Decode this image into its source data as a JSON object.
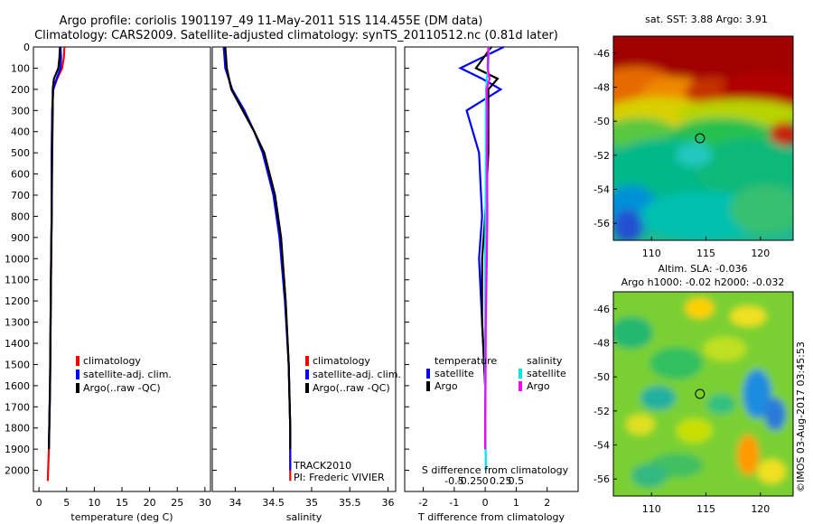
{
  "title": {
    "line1": "Argo profile: coriolis 1901197_49 11-May-2011 51S 114.455E (DM data)",
    "line2": "Climatology: CARS2009. Satellite-adjusted climatology: synTS_20110512.nc (0.81d later)"
  },
  "colors": {
    "climatology": "#ff0000",
    "satellite": "#0000ff",
    "argo": "#000000",
    "sal_satellite": "#00e5ee",
    "sal_argo": "#ff00ff"
  },
  "watermark": "©IMOS 03-Aug-2017 03:45:53",
  "chart_data": [
    {
      "type": "line",
      "name": "temperature-panel",
      "xlabel": "temperature (deg C)",
      "xlim": [
        -1,
        31
      ],
      "ylim": [
        2100,
        0
      ],
      "xticks": [
        0,
        5,
        10,
        15,
        20,
        25,
        30
      ],
      "yticks": [
        0,
        100,
        200,
        300,
        400,
        500,
        600,
        700,
        800,
        900,
        1000,
        1100,
        1200,
        1300,
        1400,
        1500,
        1600,
        1700,
        1800,
        1900,
        2000
      ],
      "legend": [
        "climatology",
        "satellite-adj. clim.",
        "Argo(..raw -QC)"
      ],
      "legend_position": "lower-left",
      "series": [
        {
          "name": "climatology",
          "x": [
            4.6,
            4.5,
            4.2,
            3.3,
            2.6,
            2.4,
            2.3,
            2.3,
            2.2,
            2.1,
            2.0,
            1.8,
            1.6
          ],
          "y": [
            0,
            50,
            100,
            150,
            200,
            300,
            500,
            800,
            1000,
            1300,
            1600,
            1900,
            2050
          ]
        },
        {
          "name": "satellite-adj. clim.",
          "x": [
            3.9,
            4.0,
            3.9,
            3.2,
            2.6,
            2.4,
            2.3,
            2.3,
            2.2,
            2.1,
            2.0,
            1.8
          ],
          "y": [
            0,
            50,
            100,
            150,
            200,
            300,
            500,
            800,
            1000,
            1300,
            1600,
            1900
          ]
        },
        {
          "name": "Argo(..raw -QC)",
          "x": [
            3.8,
            3.7,
            3.5,
            2.7,
            2.5,
            2.5,
            2.4,
            2.3,
            2.2,
            2.1,
            2.0,
            1.8
          ],
          "y": [
            0,
            50,
            100,
            150,
            200,
            300,
            500,
            800,
            1000,
            1300,
            1600,
            1900
          ]
        }
      ]
    },
    {
      "type": "line",
      "name": "salinity-panel",
      "xlabel": "salinity",
      "xlim": [
        33.7,
        36.1
      ],
      "ylim": [
        2100,
        0
      ],
      "xticks": [
        34,
        34.5,
        35,
        35.5,
        36
      ],
      "legend": [
        "climatology",
        "satellite-adj. clim.",
        "Argo(..raw -QC)"
      ],
      "legend_position": "lower-left",
      "annotation": [
        "TRACK2010",
        "PI: Frederic VIVIER"
      ],
      "series": [
        {
          "name": "climatology",
          "x": [
            33.85,
            33.87,
            33.95,
            34.1,
            34.25,
            34.38,
            34.52,
            34.6,
            34.66,
            34.7,
            34.72,
            34.72
          ],
          "y": [
            0,
            80,
            200,
            300,
            400,
            500,
            700,
            900,
            1200,
            1500,
            1800,
            2050
          ]
        },
        {
          "name": "satellite-adj. clim.",
          "x": [
            33.85,
            33.87,
            33.96,
            34.12,
            34.25,
            34.36,
            34.5,
            34.58,
            34.65,
            34.7,
            34.72,
            34.72
          ],
          "y": [
            0,
            100,
            200,
            300,
            400,
            500,
            700,
            900,
            1200,
            1500,
            1800,
            2000
          ]
        },
        {
          "name": "Argo(..raw -QC)",
          "x": [
            33.87,
            33.89,
            33.95,
            34.1,
            34.25,
            34.38,
            34.52,
            34.6,
            34.66,
            34.7,
            34.72,
            34.72
          ],
          "y": [
            0,
            100,
            200,
            300,
            400,
            500,
            700,
            900,
            1200,
            1500,
            1800,
            1900
          ]
        }
      ]
    },
    {
      "type": "line",
      "name": "difference-panel",
      "xlabel": "T difference from climatology",
      "xlabel_top": "S difference from climatology",
      "xlim": [
        -2.6,
        3
      ],
      "ylim": [
        2100,
        0
      ],
      "xticks": [
        -2,
        -1,
        0,
        1,
        2
      ],
      "xticks_top_labels": [
        "-0.5",
        "-0.25",
        "0",
        "0.25",
        "0.5"
      ],
      "legend_headers": [
        "temperature",
        "salinity"
      ],
      "legend": [
        "satellite",
        "Argo",
        "satellite",
        "Argo"
      ],
      "series": [
        {
          "name": "temperature satellite",
          "x": [
            0.6,
            -0.8,
            -0.1,
            0.5,
            -0.6,
            -0.2,
            -0.1,
            -0.2,
            -0.1,
            0.0,
            0.0
          ],
          "y": [
            0,
            100,
            150,
            200,
            300,
            500,
            800,
            1000,
            1300,
            1600,
            1900
          ]
        },
        {
          "name": "temperature Argo",
          "x": [
            0.2,
            -0.3,
            0.4,
            0.1,
            0.1,
            0.1,
            0.0,
            -0.1,
            -0.1,
            0.0,
            0.0
          ],
          "y": [
            0,
            100,
            150,
            200,
            300,
            500,
            800,
            1000,
            1300,
            1600,
            1900
          ]
        },
        {
          "name": "salinity satellite",
          "x": [
            0.12,
            0.1,
            0.05,
            0.03,
            0.02,
            0.02,
            0.01,
            0.0,
            0.0,
            0.0,
            0.02
          ],
          "y": [
            0,
            100,
            150,
            200,
            300,
            500,
            800,
            1000,
            1300,
            1600,
            2000
          ]
        },
        {
          "name": "salinity Argo",
          "x": [
            0.1,
            0.08,
            0.14,
            0.05,
            0.07,
            0.06,
            0.07,
            0.05,
            0.02,
            0.01,
            0.0
          ],
          "y": [
            0,
            100,
            150,
            200,
            300,
            500,
            800,
            1000,
            1300,
            1600,
            1900
          ]
        }
      ]
    },
    {
      "type": "heatmap",
      "name": "sst-map",
      "title": "sat. SST: 3.88 Argo: 3.91",
      "xticks": [
        110,
        115,
        120
      ],
      "yticks": [
        -46,
        -48,
        -50,
        -52,
        -54,
        -56
      ],
      "xlim": [
        106.5,
        123
      ],
      "ylim": [
        -57,
        -45
      ],
      "marker": [
        114.45,
        -51
      ]
    },
    {
      "type": "heatmap",
      "name": "sla-map",
      "title": "Altim. SLA: -0.036",
      "subtitle": "Argo h1000: -0.02 h2000: -0.032",
      "xticks": [
        110,
        115,
        120
      ],
      "yticks": [
        -46,
        -48,
        -50,
        -52,
        -54,
        -56
      ],
      "xlim": [
        106.5,
        123
      ],
      "ylim": [
        -57,
        -45
      ],
      "marker": [
        114.45,
        -51
      ]
    }
  ]
}
